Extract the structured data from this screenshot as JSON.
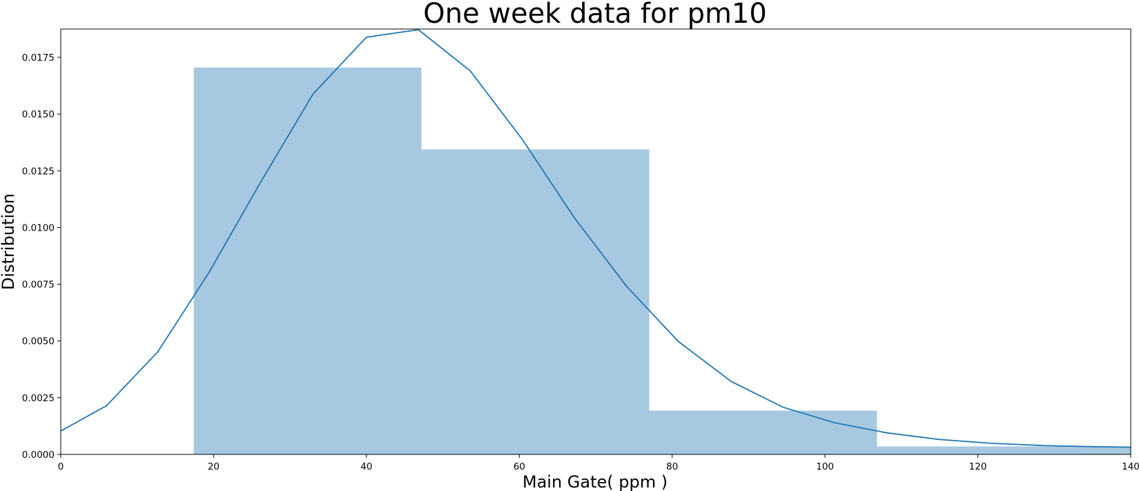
{
  "chart_data": {
    "type": "bar",
    "title": "One week data for pm10",
    "xlabel": "Main Gate( ppm )",
    "ylabel": "Distribution",
    "xlim": [
      0,
      140
    ],
    "ylim": [
      0,
      0.01875
    ],
    "grid": false,
    "xticks": [
      0,
      20,
      40,
      60,
      80,
      100,
      120,
      140
    ],
    "xtick_labels": [
      "0",
      "20",
      "40",
      "60",
      "80",
      "100",
      "120",
      "140"
    ],
    "yticks": [
      0,
      0.0025,
      0.005,
      0.0075,
      0.01,
      0.0125,
      0.015,
      0.0175
    ],
    "ytick_labels": [
      "0.0000",
      "0.0025",
      "0.0050",
      "0.0075",
      "0.0100",
      "0.0125",
      "0.0150",
      "0.0175"
    ],
    "histogram": {
      "color": "#a6c8e0",
      "bins": [
        {
          "x0": 17.4,
          "x1": 47.2,
          "value": 0.01705
        },
        {
          "x0": 47.2,
          "x1": 77.0,
          "value": 0.01344
        },
        {
          "x0": 77.0,
          "x1": 106.8,
          "value": 0.00193
        },
        {
          "x0": 106.8,
          "x1": 140.0,
          "value": 0.00035
        }
      ]
    },
    "kde": {
      "color": "#1f77b4",
      "x": [
        0,
        6.0,
        12.7,
        19.4,
        26.2,
        33.0,
        40.0,
        46.8,
        53.6,
        60.4,
        67.2,
        74.0,
        80.8,
        87.7,
        94.5,
        101.3,
        108.1,
        114.9,
        121.7,
        128.5,
        135.3,
        140
      ],
      "y": [
        0.00103,
        0.00215,
        0.00452,
        0.00802,
        0.01203,
        0.01588,
        0.01839,
        0.01872,
        0.0169,
        0.01388,
        0.01043,
        0.00742,
        0.00498,
        0.00322,
        0.00208,
        0.00139,
        0.00095,
        0.00066,
        0.00049,
        0.00039,
        0.00034,
        0.00032
      ]
    }
  }
}
